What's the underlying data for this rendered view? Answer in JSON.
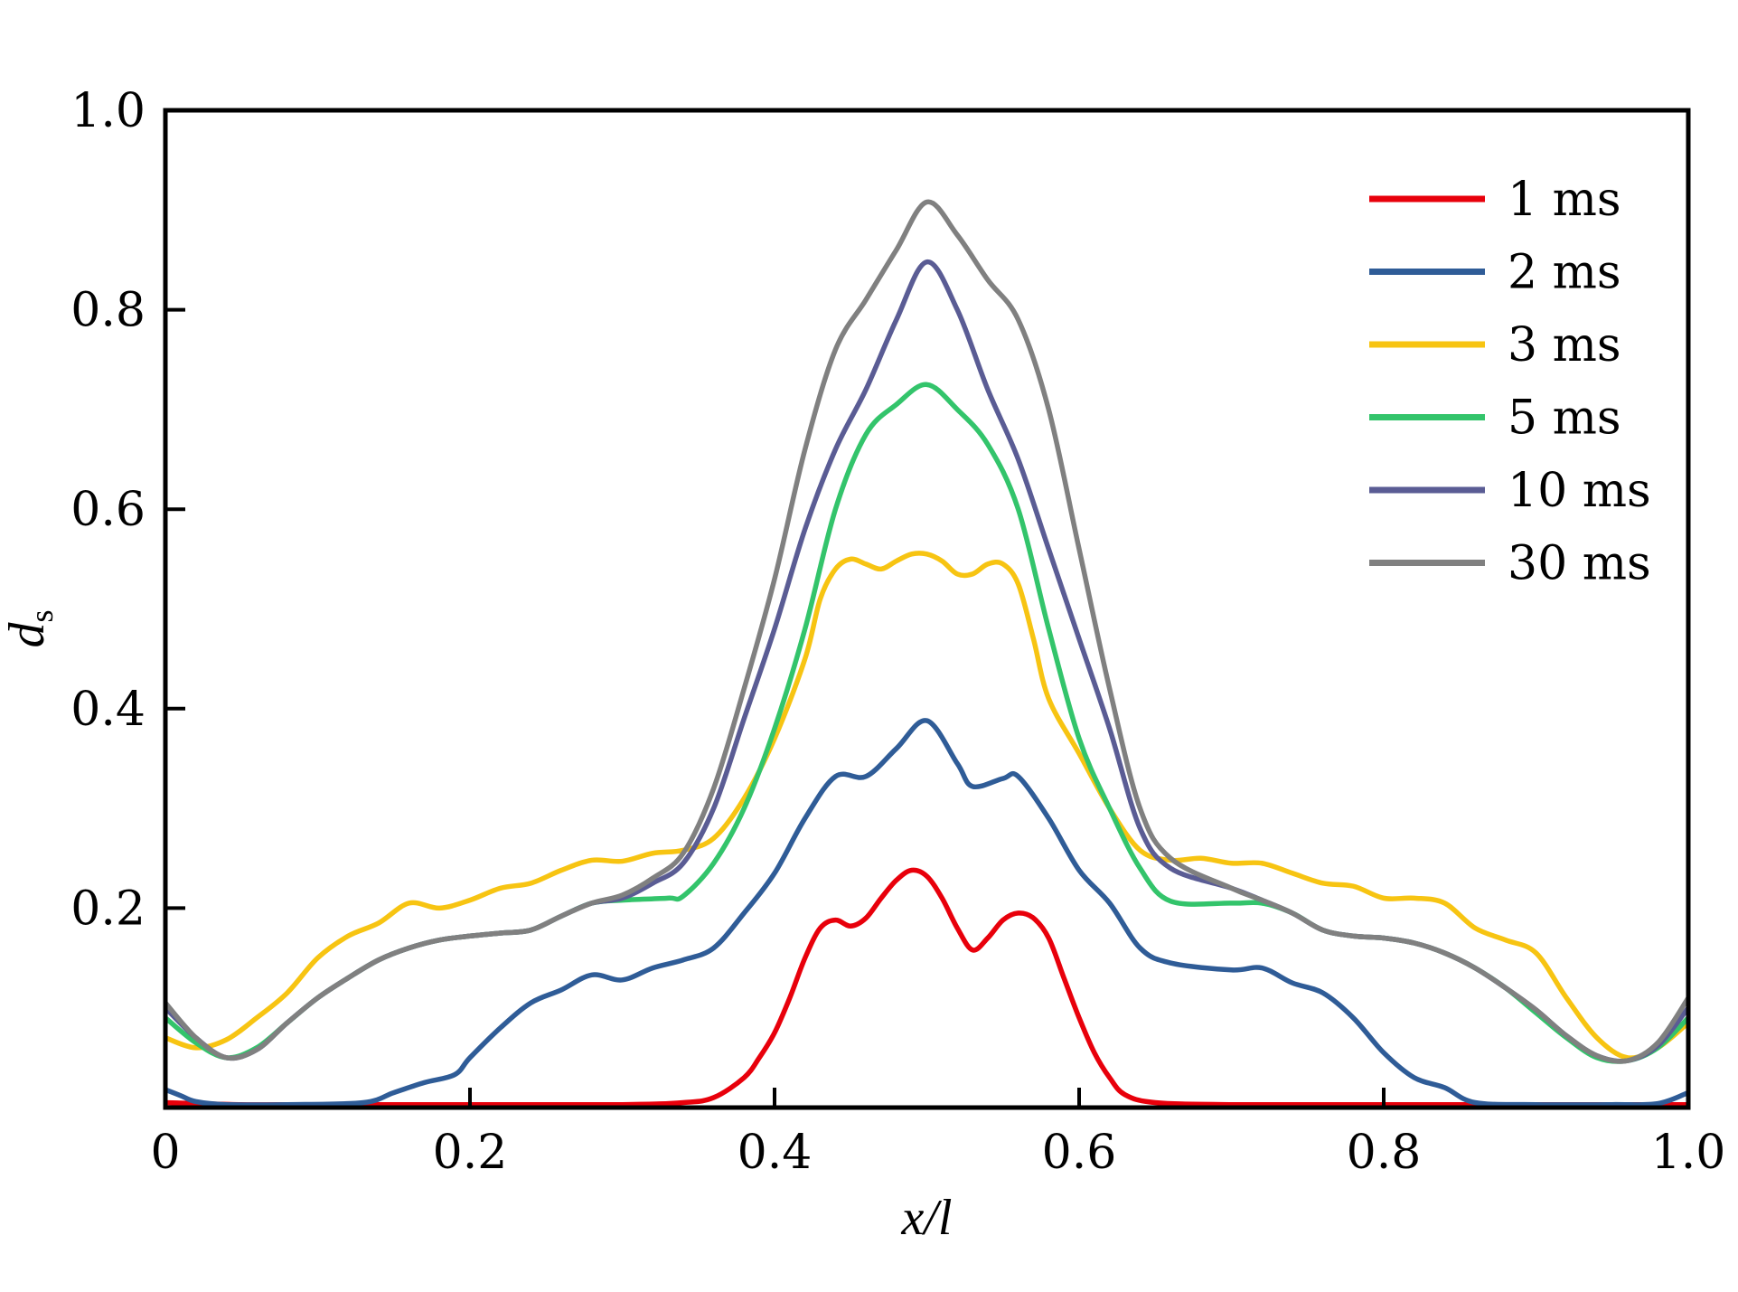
{
  "chart_data": {
    "type": "line",
    "xlabel": "x/l",
    "ylabel": "d",
    "ylabel_subscript": "s",
    "xlim": [
      0,
      1
    ],
    "ylim": [
      0,
      1
    ],
    "xticks": [
      0,
      0.2,
      0.4,
      0.6,
      0.8,
      1.0
    ],
    "xtick_labels": [
      "0",
      "0.2",
      "0.4",
      "0.6",
      "0.8",
      "1.0"
    ],
    "yticks": [
      0.2,
      0.4,
      0.6,
      0.8,
      1.0
    ],
    "ytick_labels": [
      "0.2",
      "0.4",
      "0.6",
      "0.8",
      "1.0"
    ],
    "grid": false,
    "legend_position": "top-right",
    "series": [
      {
        "name": "1 ms",
        "color": "#e8000b",
        "points": [
          [
            0,
            0.005
          ],
          [
            0.05,
            0.003
          ],
          [
            0.1,
            0.003
          ],
          [
            0.2,
            0.003
          ],
          [
            0.3,
            0.003
          ],
          [
            0.34,
            0.005
          ],
          [
            0.36,
            0.01
          ],
          [
            0.38,
            0.03
          ],
          [
            0.39,
            0.05
          ],
          [
            0.4,
            0.075
          ],
          [
            0.41,
            0.11
          ],
          [
            0.42,
            0.15
          ],
          [
            0.43,
            0.18
          ],
          [
            0.44,
            0.188
          ],
          [
            0.45,
            0.182
          ],
          [
            0.46,
            0.19
          ],
          [
            0.47,
            0.21
          ],
          [
            0.48,
            0.228
          ],
          [
            0.49,
            0.238
          ],
          [
            0.5,
            0.232
          ],
          [
            0.51,
            0.21
          ],
          [
            0.52,
            0.18
          ],
          [
            0.53,
            0.158
          ],
          [
            0.54,
            0.17
          ],
          [
            0.55,
            0.188
          ],
          [
            0.56,
            0.195
          ],
          [
            0.57,
            0.19
          ],
          [
            0.58,
            0.17
          ],
          [
            0.59,
            0.13
          ],
          [
            0.6,
            0.09
          ],
          [
            0.61,
            0.055
          ],
          [
            0.62,
            0.03
          ],
          [
            0.63,
            0.013
          ],
          [
            0.65,
            0.005
          ],
          [
            0.7,
            0.003
          ],
          [
            0.8,
            0.003
          ],
          [
            0.9,
            0.003
          ],
          [
            1.0,
            0.003
          ]
        ]
      },
      {
        "name": "2 ms",
        "color": "#2f5c97",
        "points": [
          [
            0,
            0.018
          ],
          [
            0.01,
            0.012
          ],
          [
            0.02,
            0.006
          ],
          [
            0.04,
            0.003
          ],
          [
            0.08,
            0.003
          ],
          [
            0.13,
            0.005
          ],
          [
            0.15,
            0.015
          ],
          [
            0.17,
            0.025
          ],
          [
            0.19,
            0.033
          ],
          [
            0.2,
            0.05
          ],
          [
            0.22,
            0.08
          ],
          [
            0.24,
            0.105
          ],
          [
            0.26,
            0.118
          ],
          [
            0.28,
            0.133
          ],
          [
            0.3,
            0.128
          ],
          [
            0.32,
            0.14
          ],
          [
            0.34,
            0.148
          ],
          [
            0.36,
            0.16
          ],
          [
            0.38,
            0.195
          ],
          [
            0.4,
            0.235
          ],
          [
            0.42,
            0.29
          ],
          [
            0.44,
            0.332
          ],
          [
            0.46,
            0.332
          ],
          [
            0.48,
            0.36
          ],
          [
            0.5,
            0.388
          ],
          [
            0.52,
            0.345
          ],
          [
            0.53,
            0.322
          ],
          [
            0.55,
            0.33
          ],
          [
            0.56,
            0.332
          ],
          [
            0.58,
            0.29
          ],
          [
            0.6,
            0.238
          ],
          [
            0.62,
            0.205
          ],
          [
            0.64,
            0.16
          ],
          [
            0.66,
            0.145
          ],
          [
            0.7,
            0.138
          ],
          [
            0.72,
            0.14
          ],
          [
            0.74,
            0.125
          ],
          [
            0.76,
            0.115
          ],
          [
            0.78,
            0.09
          ],
          [
            0.8,
            0.055
          ],
          [
            0.82,
            0.03
          ],
          [
            0.84,
            0.02
          ],
          [
            0.86,
            0.005
          ],
          [
            0.9,
            0.003
          ],
          [
            0.95,
            0.003
          ],
          [
            0.98,
            0.004
          ],
          [
            1.0,
            0.015
          ]
        ]
      },
      {
        "name": "3 ms",
        "color": "#f7c412",
        "points": [
          [
            0,
            0.07
          ],
          [
            0.02,
            0.06
          ],
          [
            0.04,
            0.068
          ],
          [
            0.06,
            0.09
          ],
          [
            0.08,
            0.115
          ],
          [
            0.1,
            0.15
          ],
          [
            0.12,
            0.172
          ],
          [
            0.14,
            0.185
          ],
          [
            0.16,
            0.205
          ],
          [
            0.18,
            0.2
          ],
          [
            0.2,
            0.208
          ],
          [
            0.22,
            0.22
          ],
          [
            0.24,
            0.225
          ],
          [
            0.26,
            0.238
          ],
          [
            0.28,
            0.248
          ],
          [
            0.3,
            0.247
          ],
          [
            0.32,
            0.255
          ],
          [
            0.34,
            0.258
          ],
          [
            0.36,
            0.27
          ],
          [
            0.38,
            0.31
          ],
          [
            0.4,
            0.37
          ],
          [
            0.42,
            0.45
          ],
          [
            0.43,
            0.51
          ],
          [
            0.44,
            0.54
          ],
          [
            0.45,
            0.55
          ],
          [
            0.46,
            0.545
          ],
          [
            0.47,
            0.54
          ],
          [
            0.48,
            0.548
          ],
          [
            0.49,
            0.555
          ],
          [
            0.5,
            0.555
          ],
          [
            0.51,
            0.548
          ],
          [
            0.52,
            0.535
          ],
          [
            0.53,
            0.535
          ],
          [
            0.54,
            0.545
          ],
          [
            0.55,
            0.545
          ],
          [
            0.56,
            0.525
          ],
          [
            0.57,
            0.47
          ],
          [
            0.58,
            0.41
          ],
          [
            0.6,
            0.355
          ],
          [
            0.62,
            0.3
          ],
          [
            0.64,
            0.258
          ],
          [
            0.66,
            0.248
          ],
          [
            0.68,
            0.25
          ],
          [
            0.7,
            0.245
          ],
          [
            0.72,
            0.245
          ],
          [
            0.74,
            0.235
          ],
          [
            0.76,
            0.225
          ],
          [
            0.78,
            0.222
          ],
          [
            0.8,
            0.21
          ],
          [
            0.82,
            0.21
          ],
          [
            0.84,
            0.205
          ],
          [
            0.86,
            0.18
          ],
          [
            0.88,
            0.168
          ],
          [
            0.9,
            0.155
          ],
          [
            0.92,
            0.11
          ],
          [
            0.94,
            0.07
          ],
          [
            0.96,
            0.05
          ],
          [
            0.98,
            0.06
          ],
          [
            1.0,
            0.085
          ]
        ]
      },
      {
        "name": "5 ms",
        "color": "#33c46b",
        "points": [
          [
            0,
            0.09
          ],
          [
            0.02,
            0.065
          ],
          [
            0.04,
            0.05
          ],
          [
            0.06,
            0.06
          ],
          [
            0.08,
            0.085
          ],
          [
            0.1,
            0.11
          ],
          [
            0.12,
            0.13
          ],
          [
            0.14,
            0.148
          ],
          [
            0.16,
            0.16
          ],
          [
            0.18,
            0.168
          ],
          [
            0.2,
            0.172
          ],
          [
            0.22,
            0.175
          ],
          [
            0.24,
            0.178
          ],
          [
            0.26,
            0.192
          ],
          [
            0.28,
            0.205
          ],
          [
            0.3,
            0.208
          ],
          [
            0.33,
            0.21
          ],
          [
            0.34,
            0.212
          ],
          [
            0.36,
            0.245
          ],
          [
            0.38,
            0.3
          ],
          [
            0.4,
            0.38
          ],
          [
            0.42,
            0.48
          ],
          [
            0.44,
            0.6
          ],
          [
            0.46,
            0.675
          ],
          [
            0.48,
            0.705
          ],
          [
            0.5,
            0.725
          ],
          [
            0.52,
            0.7
          ],
          [
            0.54,
            0.665
          ],
          [
            0.56,
            0.6
          ],
          [
            0.58,
            0.48
          ],
          [
            0.6,
            0.37
          ],
          [
            0.62,
            0.3
          ],
          [
            0.64,
            0.24
          ],
          [
            0.66,
            0.207
          ],
          [
            0.7,
            0.205
          ],
          [
            0.72,
            0.205
          ],
          [
            0.74,
            0.195
          ],
          [
            0.76,
            0.178
          ],
          [
            0.78,
            0.172
          ],
          [
            0.8,
            0.17
          ],
          [
            0.82,
            0.165
          ],
          [
            0.84,
            0.155
          ],
          [
            0.86,
            0.14
          ],
          [
            0.88,
            0.12
          ],
          [
            0.9,
            0.095
          ],
          [
            0.92,
            0.07
          ],
          [
            0.94,
            0.05
          ],
          [
            0.96,
            0.047
          ],
          [
            0.98,
            0.06
          ],
          [
            1.0,
            0.09
          ]
        ]
      },
      {
        "name": "10 ms",
        "color": "#5a5c94",
        "points": [
          [
            0,
            0.1
          ],
          [
            0.02,
            0.07
          ],
          [
            0.04,
            0.05
          ],
          [
            0.06,
            0.058
          ],
          [
            0.08,
            0.085
          ],
          [
            0.1,
            0.11
          ],
          [
            0.12,
            0.13
          ],
          [
            0.14,
            0.148
          ],
          [
            0.16,
            0.16
          ],
          [
            0.18,
            0.168
          ],
          [
            0.2,
            0.172
          ],
          [
            0.22,
            0.175
          ],
          [
            0.24,
            0.178
          ],
          [
            0.26,
            0.192
          ],
          [
            0.28,
            0.205
          ],
          [
            0.3,
            0.21
          ],
          [
            0.32,
            0.225
          ],
          [
            0.34,
            0.245
          ],
          [
            0.36,
            0.3
          ],
          [
            0.38,
            0.39
          ],
          [
            0.4,
            0.48
          ],
          [
            0.42,
            0.58
          ],
          [
            0.44,
            0.66
          ],
          [
            0.46,
            0.72
          ],
          [
            0.48,
            0.79
          ],
          [
            0.5,
            0.848
          ],
          [
            0.52,
            0.8
          ],
          [
            0.54,
            0.72
          ],
          [
            0.56,
            0.65
          ],
          [
            0.58,
            0.56
          ],
          [
            0.6,
            0.47
          ],
          [
            0.62,
            0.38
          ],
          [
            0.64,
            0.28
          ],
          [
            0.66,
            0.24
          ],
          [
            0.7,
            0.22
          ],
          [
            0.72,
            0.208
          ],
          [
            0.74,
            0.195
          ],
          [
            0.76,
            0.178
          ],
          [
            0.78,
            0.172
          ],
          [
            0.8,
            0.17
          ],
          [
            0.82,
            0.165
          ],
          [
            0.84,
            0.155
          ],
          [
            0.86,
            0.14
          ],
          [
            0.88,
            0.12
          ],
          [
            0.9,
            0.098
          ],
          [
            0.92,
            0.072
          ],
          [
            0.94,
            0.052
          ],
          [
            0.96,
            0.047
          ],
          [
            0.98,
            0.062
          ],
          [
            1.0,
            0.1
          ]
        ]
      },
      {
        "name": "30 ms",
        "color": "#808080",
        "points": [
          [
            0,
            0.105
          ],
          [
            0.02,
            0.07
          ],
          [
            0.04,
            0.05
          ],
          [
            0.06,
            0.058
          ],
          [
            0.08,
            0.085
          ],
          [
            0.1,
            0.11
          ],
          [
            0.12,
            0.13
          ],
          [
            0.14,
            0.148
          ],
          [
            0.16,
            0.16
          ],
          [
            0.18,
            0.168
          ],
          [
            0.2,
            0.172
          ],
          [
            0.22,
            0.175
          ],
          [
            0.24,
            0.178
          ],
          [
            0.26,
            0.192
          ],
          [
            0.28,
            0.205
          ],
          [
            0.3,
            0.213
          ],
          [
            0.32,
            0.23
          ],
          [
            0.34,
            0.255
          ],
          [
            0.36,
            0.32
          ],
          [
            0.38,
            0.42
          ],
          [
            0.4,
            0.53
          ],
          [
            0.42,
            0.66
          ],
          [
            0.44,
            0.76
          ],
          [
            0.46,
            0.81
          ],
          [
            0.48,
            0.86
          ],
          [
            0.5,
            0.908
          ],
          [
            0.52,
            0.875
          ],
          [
            0.54,
            0.83
          ],
          [
            0.56,
            0.79
          ],
          [
            0.58,
            0.7
          ],
          [
            0.6,
            0.56
          ],
          [
            0.62,
            0.42
          ],
          [
            0.64,
            0.3
          ],
          [
            0.66,
            0.25
          ],
          [
            0.7,
            0.22
          ],
          [
            0.72,
            0.208
          ],
          [
            0.74,
            0.195
          ],
          [
            0.76,
            0.178
          ],
          [
            0.78,
            0.172
          ],
          [
            0.8,
            0.17
          ],
          [
            0.82,
            0.165
          ],
          [
            0.84,
            0.155
          ],
          [
            0.86,
            0.14
          ],
          [
            0.88,
            0.12
          ],
          [
            0.9,
            0.098
          ],
          [
            0.92,
            0.072
          ],
          [
            0.94,
            0.052
          ],
          [
            0.96,
            0.047
          ],
          [
            0.98,
            0.065
          ],
          [
            1.0,
            0.11
          ]
        ]
      }
    ]
  }
}
